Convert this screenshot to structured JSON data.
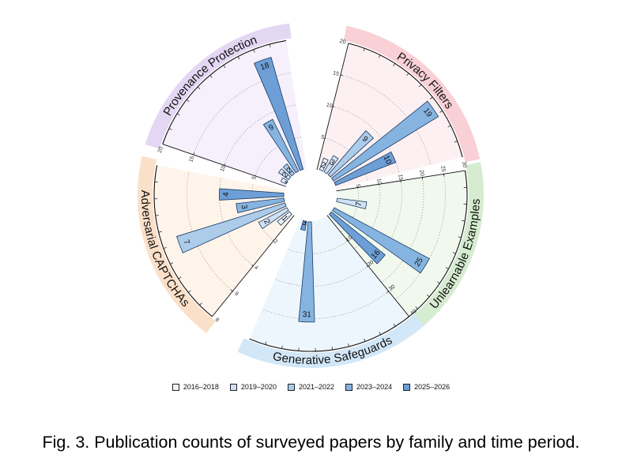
{
  "caption": "Fig. 3. Publication counts of surveyed papers by family and time period.",
  "chart_data": {
    "type": "radial-bar",
    "periods": [
      "2016–2018",
      "2019–2020",
      "2021–2022",
      "2023–2024",
      "2025–2026"
    ],
    "period_colors": [
      "#eef4fb",
      "#cfe1f3",
      "#acccea",
      "#86b4e0",
      "#6d9fd6"
    ],
    "families": [
      {
        "name": "Privacy Filters",
        "band_color": "#f8d0d6",
        "bg_color": "#fdf0f2",
        "axis_max": 20,
        "ticks": [
          5,
          10,
          15,
          20
        ],
        "values": [
          2,
          3,
          9,
          19,
          10
        ],
        "center_deg": 45
      },
      {
        "name": "Unlearnable Examples",
        "band_color": "#d5ecd0",
        "bg_color": "#f1f8ee",
        "axis_max": 30,
        "ticks": [
          5,
          10,
          15,
          20,
          25,
          30
        ],
        "values": [
          null,
          7,
          null,
          25,
          16
        ],
        "center_deg": 112
      },
      {
        "name": "Generative Safeguards",
        "band_color": "#d2e7f7",
        "bg_color": "#eef6fd",
        "axis_max": 40,
        "ticks": [
          10,
          20,
          30,
          40
        ],
        "values": [
          null,
          null,
          null,
          31,
          3
        ],
        "center_deg": 172
      },
      {
        "name": "Adversarial CAPTCHAs",
        "band_color": "#fbe0c9",
        "bg_color": "#fef4ea",
        "axis_max": 8,
        "ticks": [
          2,
          4,
          6,
          8
        ],
        "values": [
          1,
          2,
          7,
          3,
          4
        ],
        "center_deg": 250
      },
      {
        "name": "Provenance Protection",
        "band_color": "#e4d7f4",
        "bg_color": "#f5f0fb",
        "axis_max": 20,
        "ticks": [
          5,
          10,
          15,
          20
        ],
        "values": [
          1,
          2,
          2,
          9,
          18
        ],
        "center_deg": 320
      }
    ]
  }
}
